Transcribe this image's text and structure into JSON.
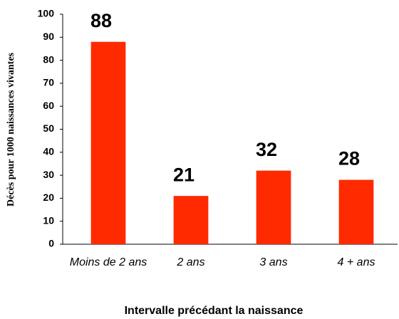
{
  "chart_data": {
    "type": "bar",
    "categories": [
      "Moins de 2 ans",
      "2 ans",
      "3 ans",
      "4 + ans"
    ],
    "values": [
      88,
      21,
      32,
      28
    ],
    "color": "#ff2a00",
    "ylim": [
      0,
      100
    ],
    "yticks": [
      0,
      10,
      20,
      30,
      40,
      50,
      60,
      70,
      80,
      90,
      100
    ],
    "y_label": "Décès pour 1000 naissances vivantes",
    "x_label": "Intervalle précédant la naissance",
    "grid": false
  }
}
